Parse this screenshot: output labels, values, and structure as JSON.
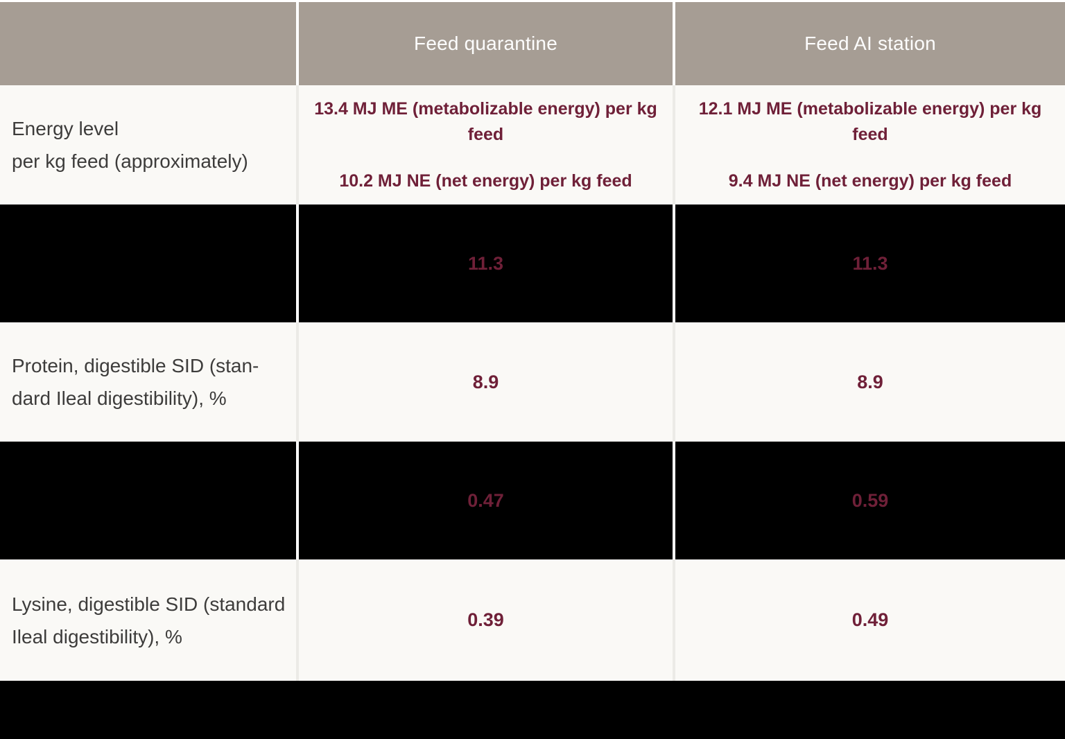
{
  "colors": {
    "header_bg": "#a69d94",
    "header_text": "#fdfdfd",
    "row_light_bg": "#faf9f6",
    "row_dark_bg": "#000000",
    "accent_maroon": "#6f2038",
    "label_gray": "#3d3c3b",
    "separator_white": "#ffffff"
  },
  "table": {
    "columns": [
      {
        "label": ""
      },
      {
        "label": "Feed quarantine"
      },
      {
        "label": "Feed AI station"
      }
    ],
    "rows": [
      {
        "type": "light",
        "label_lines": [
          "Energy level",
          "per kg feed (approximately)"
        ],
        "cells": [
          {
            "lines": [
              "13.4 MJ ME (metabolizable energy) per kg feed",
              "10.2 MJ NE (net energy) per kg feed"
            ]
          },
          {
            "lines": [
              "12.1 MJ ME (metabolizable energy) per kg feed",
              "9.4 MJ NE (net energy) per kg feed"
            ]
          }
        ]
      },
      {
        "type": "dark",
        "label": "",
        "values": [
          "11.3",
          "11.3"
        ]
      },
      {
        "type": "light",
        "label_lines": [
          "Protein, digestible SID (stan-",
          "dard Ileal digestibility), %"
        ],
        "values": [
          "8.9",
          "8.9"
        ]
      },
      {
        "type": "dark",
        "label": "",
        "values": [
          "0.47",
          "0.59"
        ]
      },
      {
        "type": "light",
        "label_lines": [
          "Lysine, digestible SID (standard",
          "Ileal digestibility), %"
        ],
        "values": [
          "0.39",
          "0.49"
        ]
      }
    ]
  }
}
